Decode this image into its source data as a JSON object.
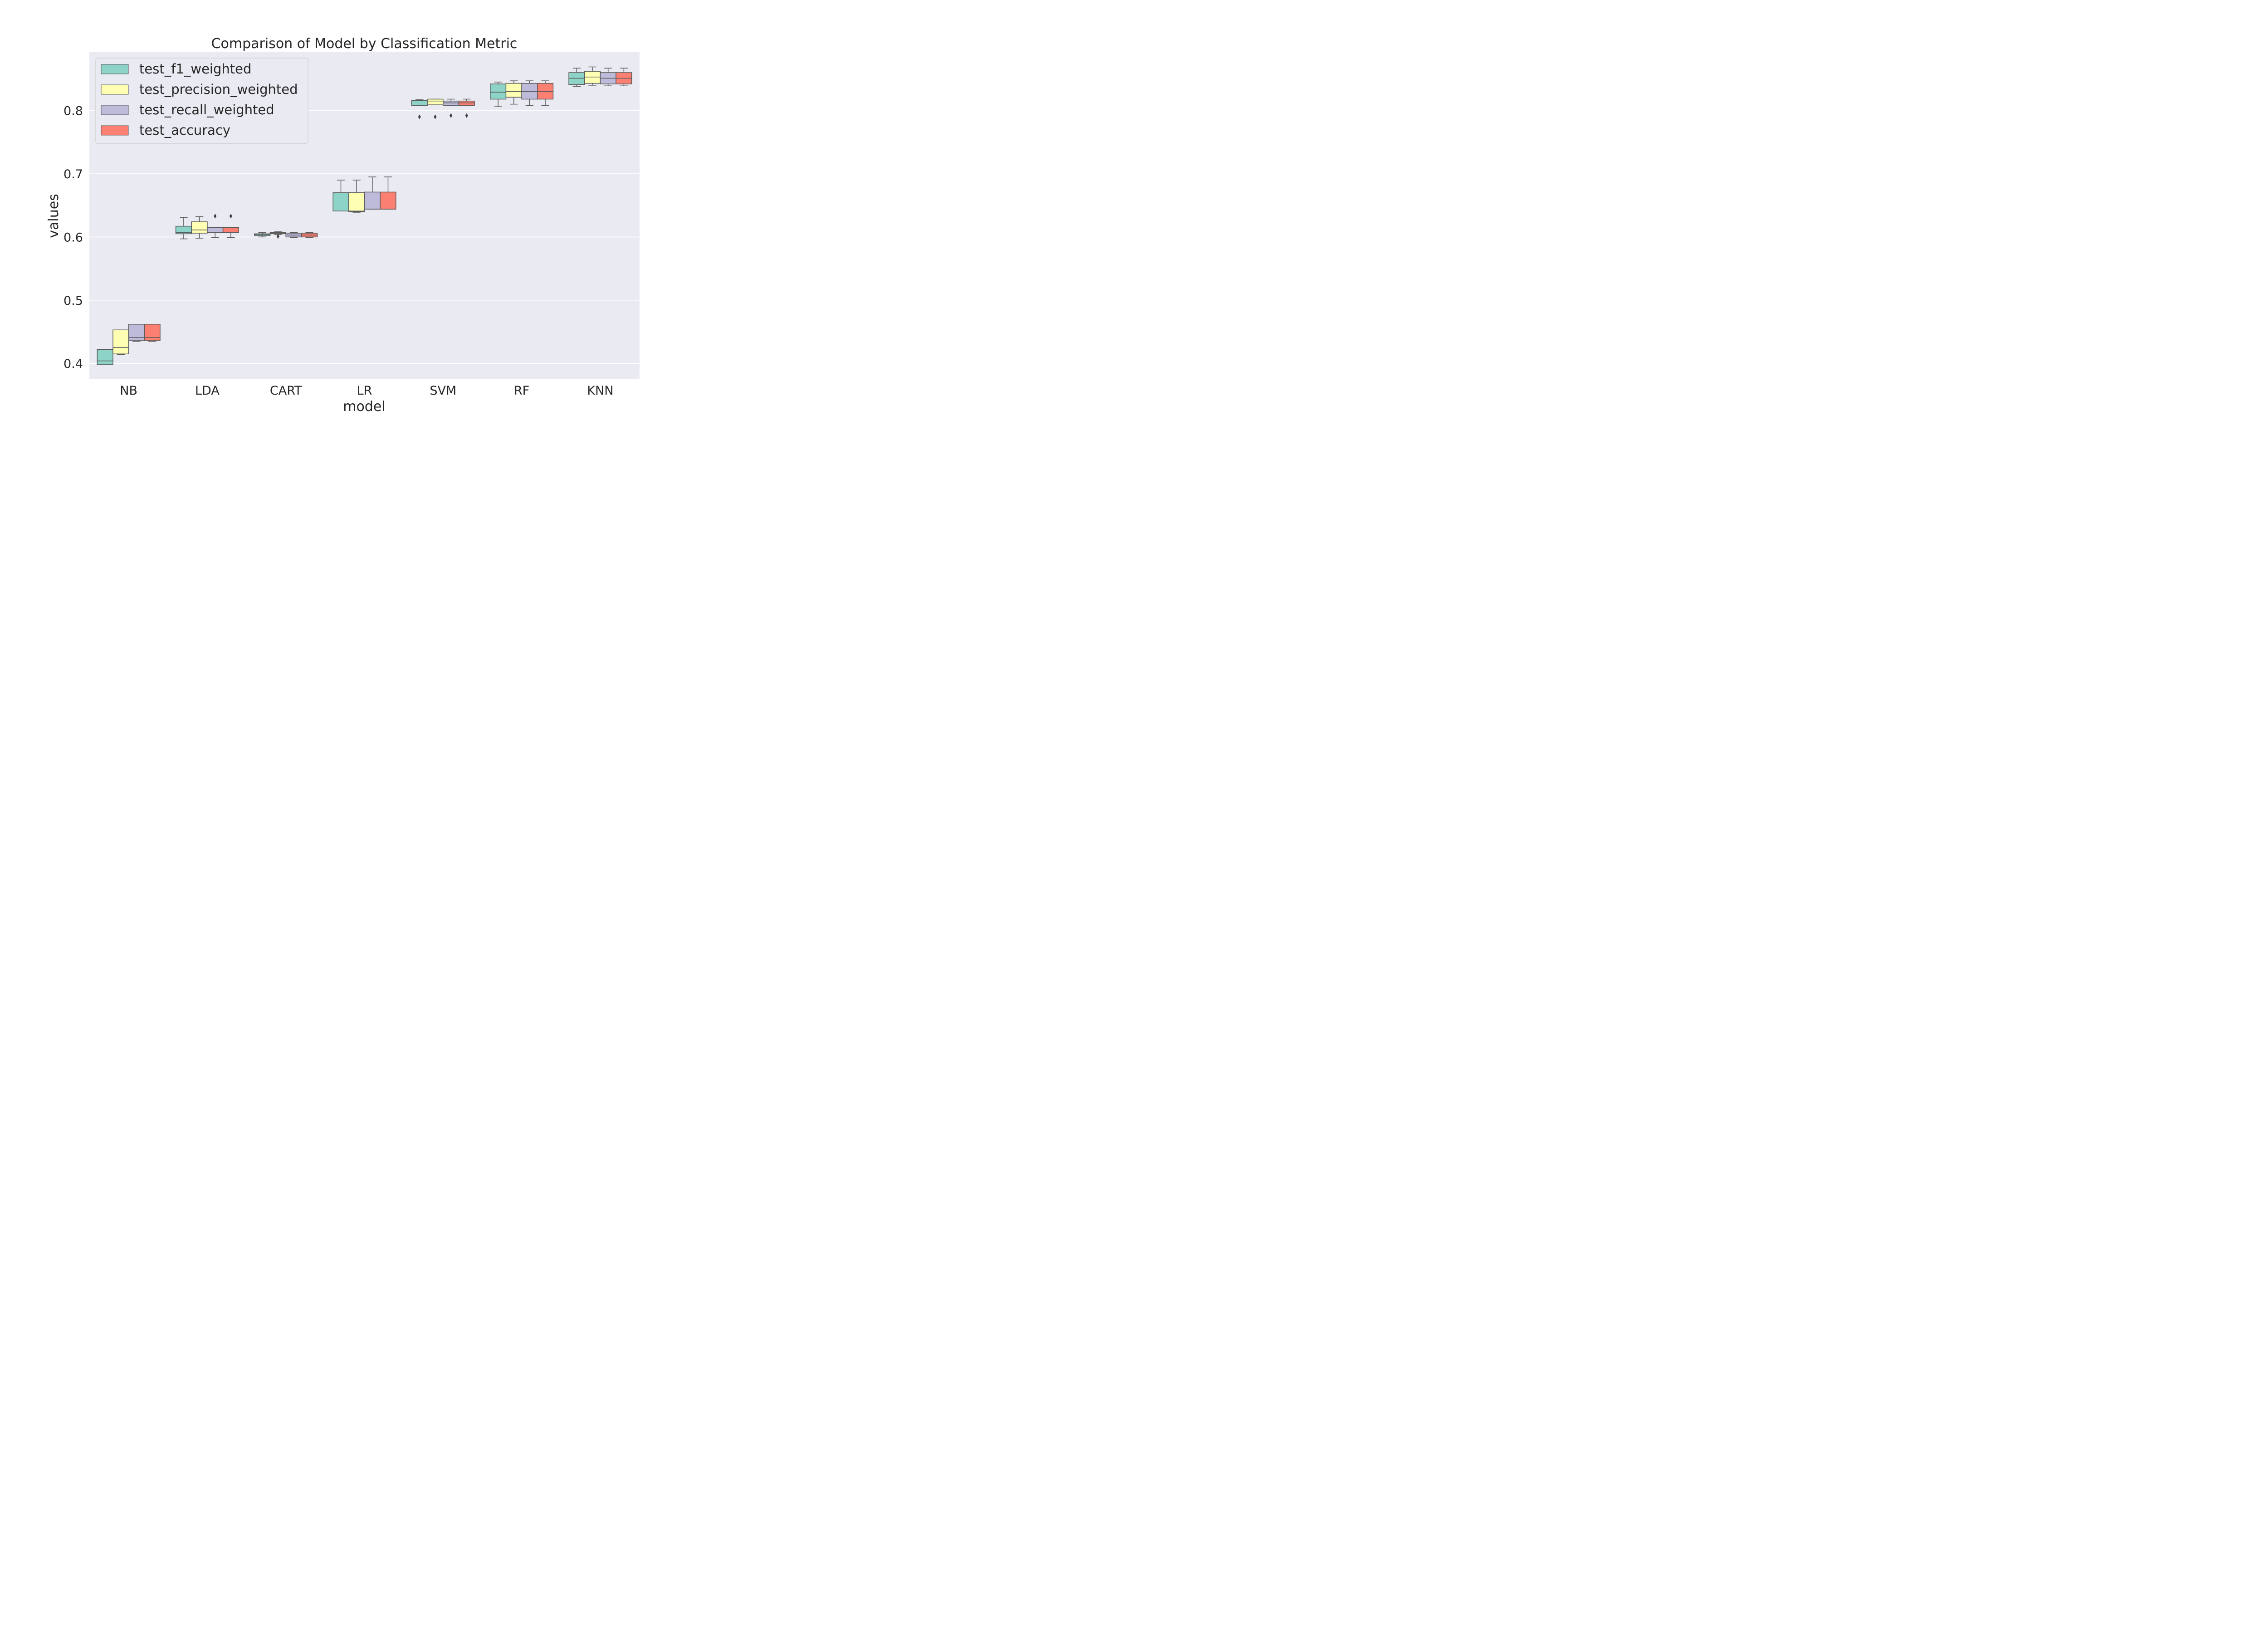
{
  "chart_data": {
    "type": "box",
    "title": "Comparison of Model by Classification Metric",
    "xlabel": "model",
    "ylabel": "values",
    "categories": [
      "NB",
      "LDA",
      "CART",
      "LR",
      "SVM",
      "RF",
      "KNN"
    ],
    "yticks": [
      0.4,
      0.5,
      0.6,
      0.7,
      0.8
    ],
    "ytick_labels": [
      "0.4",
      "0.5",
      "0.6",
      "0.7",
      "0.8"
    ],
    "ylim": [
      0.375,
      0.893
    ],
    "grid": true,
    "legend_position": "top-left",
    "series": [
      {
        "name": "test_f1_weighted",
        "color": "#8dd3c7",
        "boxes": [
          {
            "whislo": 0.398,
            "q1": 0.398,
            "med": 0.404,
            "q3": 0.422,
            "whishi": 0.422,
            "fliers": []
          },
          {
            "whislo": 0.597,
            "q1": 0.605,
            "med": 0.607,
            "q3": 0.617,
            "whishi": 0.631,
            "fliers": []
          },
          {
            "whislo": 0.6,
            "q1": 0.602,
            "med": 0.604,
            "q3": 0.605,
            "whishi": 0.607,
            "fliers": []
          },
          {
            "whislo": 0.641,
            "q1": 0.641,
            "med": 0.641,
            "q3": 0.67,
            "whishi": 0.69,
            "fliers": []
          },
          {
            "whislo": 0.808,
            "q1": 0.808,
            "med": 0.816,
            "q3": 0.816,
            "whishi": 0.817,
            "fliers": [
              0.79
            ]
          },
          {
            "whislo": 0.806,
            "q1": 0.818,
            "med": 0.829,
            "q3": 0.842,
            "whishi": 0.845,
            "fliers": []
          },
          {
            "whislo": 0.838,
            "q1": 0.841,
            "med": 0.851,
            "q3": 0.86,
            "whishi": 0.867,
            "fliers": []
          }
        ]
      },
      {
        "name": "test_precision_weighted",
        "color": "#ffffb3",
        "boxes": [
          {
            "whislo": 0.414,
            "q1": 0.415,
            "med": 0.425,
            "q3": 0.453,
            "whishi": 0.453,
            "fliers": []
          },
          {
            "whislo": 0.598,
            "q1": 0.606,
            "med": 0.611,
            "q3": 0.624,
            "whishi": 0.632,
            "fliers": []
          },
          {
            "whislo": 0.604,
            "q1": 0.605,
            "med": 0.606,
            "q3": 0.607,
            "whishi": 0.609,
            "fliers": [
              0.601
            ]
          },
          {
            "whislo": 0.639,
            "q1": 0.64,
            "med": 0.641,
            "q3": 0.67,
            "whishi": 0.69,
            "fliers": []
          },
          {
            "whislo": 0.809,
            "q1": 0.809,
            "med": 0.815,
            "q3": 0.818,
            "whishi": 0.818,
            "fliers": [
              0.79
            ]
          },
          {
            "whislo": 0.81,
            "q1": 0.821,
            "med": 0.83,
            "q3": 0.843,
            "whishi": 0.847,
            "fliers": []
          },
          {
            "whislo": 0.84,
            "q1": 0.843,
            "med": 0.853,
            "q3": 0.862,
            "whishi": 0.869,
            "fliers": []
          }
        ]
      },
      {
        "name": "test_recall_weighted",
        "color": "#bebada",
        "boxes": [
          {
            "whislo": 0.435,
            "q1": 0.436,
            "med": 0.441,
            "q3": 0.462,
            "whishi": 0.462,
            "fliers": []
          },
          {
            "whislo": 0.599,
            "q1": 0.607,
            "med": 0.607,
            "q3": 0.615,
            "whishi": 0.615,
            "fliers": [
              0.633
            ]
          },
          {
            "whislo": 0.599,
            "q1": 0.6,
            "med": 0.603,
            "q3": 0.606,
            "whishi": 0.607,
            "fliers": []
          },
          {
            "whislo": 0.644,
            "q1": 0.644,
            "med": 0.644,
            "q3": 0.671,
            "whishi": 0.695,
            "fliers": []
          },
          {
            "whislo": 0.808,
            "q1": 0.808,
            "med": 0.812,
            "q3": 0.815,
            "whishi": 0.818,
            "fliers": [
              0.792
            ]
          },
          {
            "whislo": 0.808,
            "q1": 0.818,
            "med": 0.83,
            "q3": 0.843,
            "whishi": 0.847,
            "fliers": []
          },
          {
            "whislo": 0.839,
            "q1": 0.842,
            "med": 0.851,
            "q3": 0.86,
            "whishi": 0.867,
            "fliers": []
          }
        ]
      },
      {
        "name": "test_accuracy",
        "color": "#fb8072",
        "boxes": [
          {
            "whislo": 0.435,
            "q1": 0.436,
            "med": 0.441,
            "q3": 0.462,
            "whishi": 0.462,
            "fliers": []
          },
          {
            "whislo": 0.599,
            "q1": 0.607,
            "med": 0.607,
            "q3": 0.615,
            "whishi": 0.615,
            "fliers": [
              0.633
            ]
          },
          {
            "whislo": 0.599,
            "q1": 0.6,
            "med": 0.603,
            "q3": 0.606,
            "whishi": 0.607,
            "fliers": []
          },
          {
            "whislo": 0.644,
            "q1": 0.644,
            "med": 0.644,
            "q3": 0.671,
            "whishi": 0.695,
            "fliers": []
          },
          {
            "whislo": 0.808,
            "q1": 0.808,
            "med": 0.812,
            "q3": 0.815,
            "whishi": 0.818,
            "fliers": [
              0.792
            ]
          },
          {
            "whislo": 0.808,
            "q1": 0.818,
            "med": 0.83,
            "q3": 0.843,
            "whishi": 0.847,
            "fliers": []
          },
          {
            "whislo": 0.839,
            "q1": 0.842,
            "med": 0.851,
            "q3": 0.86,
            "whishi": 0.867,
            "fliers": []
          }
        ]
      }
    ]
  }
}
